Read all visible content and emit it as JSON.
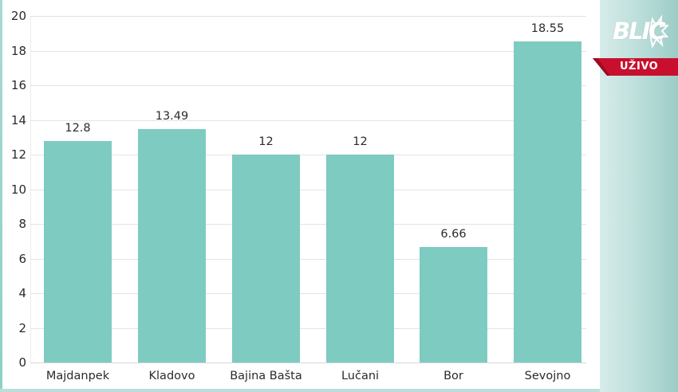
{
  "chart_data": {
    "type": "bar",
    "title": "",
    "xlabel": "",
    "ylabel": "",
    "categories": [
      "Majdanpek",
      "Kladovo",
      "Bajina Bašta",
      "Lučani",
      "Bor",
      "Sevojno"
    ],
    "values": [
      12.8,
      13.49,
      12,
      12,
      6.66,
      18.55
    ],
    "value_labels": [
      "12.8",
      "13.49",
      "12",
      "12",
      "6.66",
      "18.55"
    ],
    "ylim": [
      0,
      20
    ],
    "yticks": [
      "0",
      "2",
      "4",
      "6",
      "8",
      "10",
      "12",
      "14",
      "16",
      "18",
      "20"
    ],
    "grid": true,
    "legend": null,
    "bar_color": "#7ecbc2"
  },
  "overlay": {
    "logo_text": "BLIC",
    "live_label": "UŽIVO",
    "live_color": "#c8102e"
  }
}
